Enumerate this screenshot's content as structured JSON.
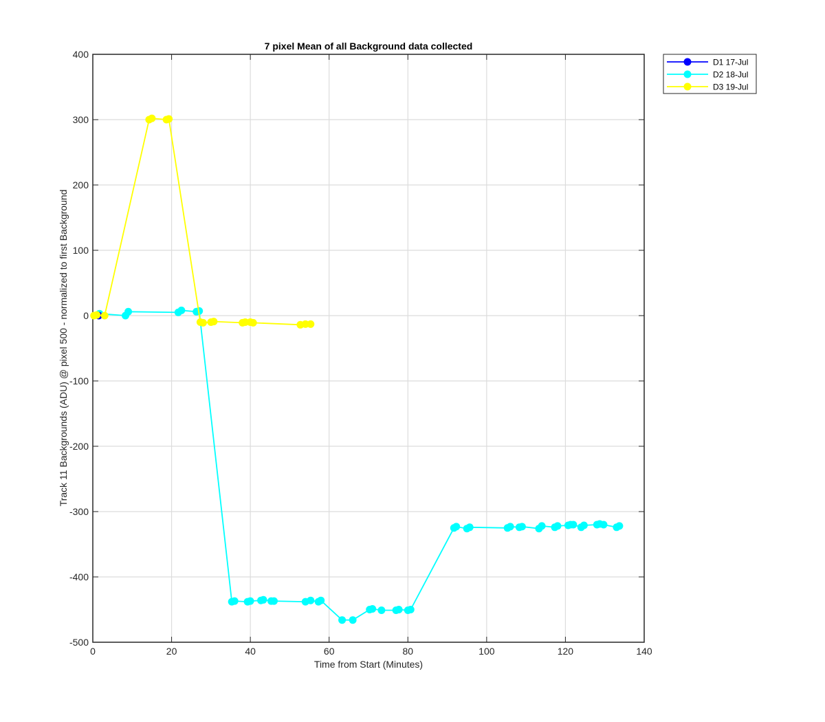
{
  "chart_data": {
    "type": "line",
    "title": "7 pixel Mean of all Background data collected",
    "xlabel": "Time from Start (Minutes)",
    "ylabel": "Track 11 Backgrounds (ADU) @ pixel 500 - normalized to first Background",
    "xlim": [
      0,
      140
    ],
    "ylim": [
      -500,
      400
    ],
    "xticks": [
      0,
      20,
      40,
      60,
      80,
      100,
      120,
      140
    ],
    "yticks": [
      -500,
      -400,
      -300,
      -200,
      -100,
      0,
      100,
      200,
      300,
      400
    ],
    "grid": true,
    "legend_position": "outside-top-right",
    "series": [
      {
        "name": "D1 17-Jul",
        "color": "#0000ff",
        "x": [
          1.5
        ],
        "y": [
          0
        ]
      },
      {
        "name": "D2 18-Jul",
        "color": "#00ffff",
        "x": [
          1.7,
          8.3,
          9.0,
          21.7,
          22.5,
          26.3,
          27.0,
          35.3,
          36.0,
          39.3,
          40.0,
          42.7,
          43.3,
          45.3,
          46.0,
          54.0,
          55.3,
          57.3,
          57.9,
          63.3,
          66.0,
          70.3,
          71.0,
          73.3,
          77.0,
          77.7,
          80.0,
          80.7,
          91.7,
          92.3,
          95.0,
          95.7,
          105.3,
          106.0,
          108.3,
          109.0,
          113.3,
          114.0,
          117.3,
          118.0,
          120.7,
          121.3,
          122.0,
          124.0,
          124.7,
          128.0,
          128.7,
          129.7,
          133.0,
          133.7
        ],
        "y": [
          3,
          0,
          6,
          5,
          8,
          6,
          7,
          -438,
          -437,
          -438,
          -437,
          -436,
          -435,
          -437,
          -437,
          -438,
          -436,
          -438,
          -436,
          -466,
          -466,
          -450,
          -449,
          -451,
          -451,
          -450,
          -451,
          -450,
          -325,
          -323,
          -326,
          -324,
          -325,
          -323,
          -324,
          -323,
          -326,
          -322,
          -324,
          -322,
          -321,
          -320,
          -320,
          -324,
          -321,
          -320,
          -319,
          -320,
          -324,
          -322
        ]
      },
      {
        "name": "D3 19-Jul",
        "color": "#ffff00",
        "x": [
          0.3,
          1.0,
          3.0,
          14.3,
          15.0,
          18.7,
          19.3,
          27.3,
          28.0,
          30.0,
          30.7,
          38.0,
          38.7,
          40.0,
          40.7,
          52.7,
          54.0,
          55.3
        ],
        "y": [
          0,
          1,
          0,
          300,
          302,
          300,
          301,
          -10,
          -11,
          -10,
          -9,
          -11,
          -10,
          -10,
          -11,
          -14,
          -13,
          -13
        ]
      }
    ]
  }
}
